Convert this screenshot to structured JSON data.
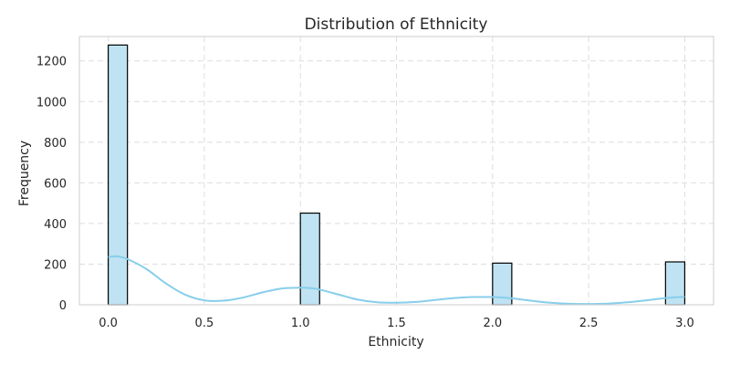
{
  "chart_data": {
    "type": "bar",
    "title": "Distribution of Ethnicity",
    "xlabel": "Ethnicity",
    "ylabel": "Frequency",
    "xlim": [
      -0.15,
      3.15
    ],
    "ylim": [
      0,
      1320
    ],
    "xticks": [
      0.0,
      0.5,
      1.0,
      1.5,
      2.0,
      2.5,
      3.0
    ],
    "xtick_labels": [
      "0.0",
      "0.5",
      "1.0",
      "1.5",
      "2.0",
      "2.5",
      "3.0"
    ],
    "yticks": [
      0,
      200,
      400,
      600,
      800,
      1000,
      1200
    ],
    "ytick_labels": [
      "0",
      "200",
      "400",
      "600",
      "800",
      "1000",
      "1200"
    ],
    "bins": [
      {
        "x0": 0.0,
        "x1": 0.1,
        "count": 1278
      },
      {
        "x0": 1.0,
        "x1": 1.1,
        "count": 451
      },
      {
        "x0": 2.0,
        "x1": 2.1,
        "count": 205
      },
      {
        "x0": 2.9,
        "x1": 3.0,
        "count": 211
      }
    ],
    "kde": {
      "x": [
        0.0,
        0.05,
        0.1,
        0.2,
        0.3,
        0.4,
        0.5,
        0.6,
        0.7,
        0.8,
        0.9,
        1.0,
        1.05,
        1.1,
        1.2,
        1.3,
        1.4,
        1.5,
        1.6,
        1.7,
        1.8,
        1.9,
        2.0,
        2.05,
        2.1,
        2.2,
        2.3,
        2.4,
        2.5,
        2.6,
        2.7,
        2.8,
        2.9,
        3.0
      ],
      "y": [
        235,
        238,
        225,
        175,
        105,
        50,
        22,
        20,
        35,
        60,
        80,
        84,
        82,
        75,
        50,
        25,
        12,
        10,
        14,
        24,
        33,
        38,
        38,
        36,
        32,
        20,
        10,
        5,
        4,
        6,
        12,
        22,
        33,
        40
      ]
    },
    "grid": true,
    "bar_color": "#bfe3f2",
    "bar_edge_color": "#000000",
    "kde_color": "#87ceeb",
    "grid_color": "#dddddd",
    "frame_color": "#cccccc"
  }
}
